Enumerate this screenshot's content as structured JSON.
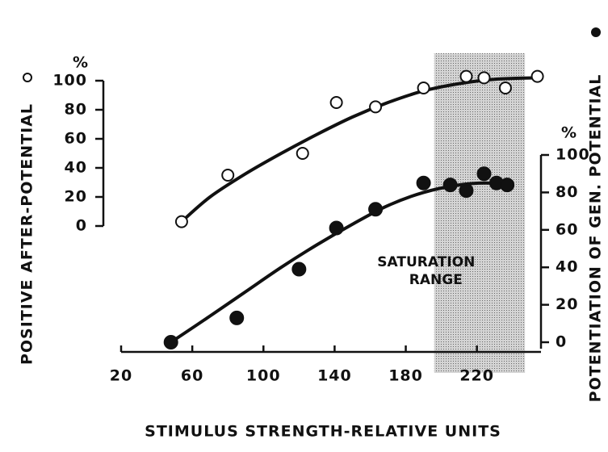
{
  "chart_data": {
    "type": "scatter",
    "xlabel": "STIMULUS STRENGTH-RELATIVE UNITS",
    "ylabel": "POSITIVE AFTER-POTENTIAL",
    "y2label": "POTENTIATION OF GEN. POTENTIAL",
    "y_unit": "%",
    "y2_unit": "%",
    "annotation": [
      "SATURATION",
      "RANGE"
    ],
    "shade": [
      196,
      247
    ],
    "xlim": [
      20,
      256
    ],
    "xticks": [
      20,
      60,
      100,
      140,
      180,
      220
    ],
    "ylim": [
      0,
      100
    ],
    "yticks": [
      0,
      20,
      40,
      60,
      80,
      100
    ],
    "y2lim": [
      0,
      100
    ],
    "y2ticks": [
      0,
      20,
      40,
      60,
      80,
      100
    ],
    "series": [
      {
        "marker": "open",
        "color": "#111111",
        "x": [
          54,
          80,
          122,
          141,
          163,
          190,
          214,
          224,
          236,
          254
        ],
        "values": [
          3,
          35,
          50,
          85,
          82,
          95,
          103,
          102,
          95,
          103
        ],
        "fit_x": [
          54,
          70,
          90,
          110,
          130,
          150,
          170,
          190,
          210,
          230,
          254
        ],
        "fit_values": [
          3,
          20,
          36,
          50,
          63,
          75,
          85,
          93,
          98,
          101,
          102
        ]
      },
      {
        "marker": "filled",
        "color": "#111111",
        "axis": "y2",
        "x": [
          48,
          85,
          120,
          141,
          163,
          190,
          205,
          214,
          224,
          231,
          237
        ],
        "values": [
          0,
          13,
          39,
          61,
          71,
          85,
          84,
          81,
          90,
          85,
          84
        ],
        "fit_x": [
          48,
          70,
          90,
          110,
          130,
          150,
          170,
          190,
          210,
          225,
          240
        ],
        "fit_values": [
          0,
          14,
          27,
          40,
          52,
          63,
          73,
          80,
          84,
          85,
          84
        ]
      }
    ]
  }
}
